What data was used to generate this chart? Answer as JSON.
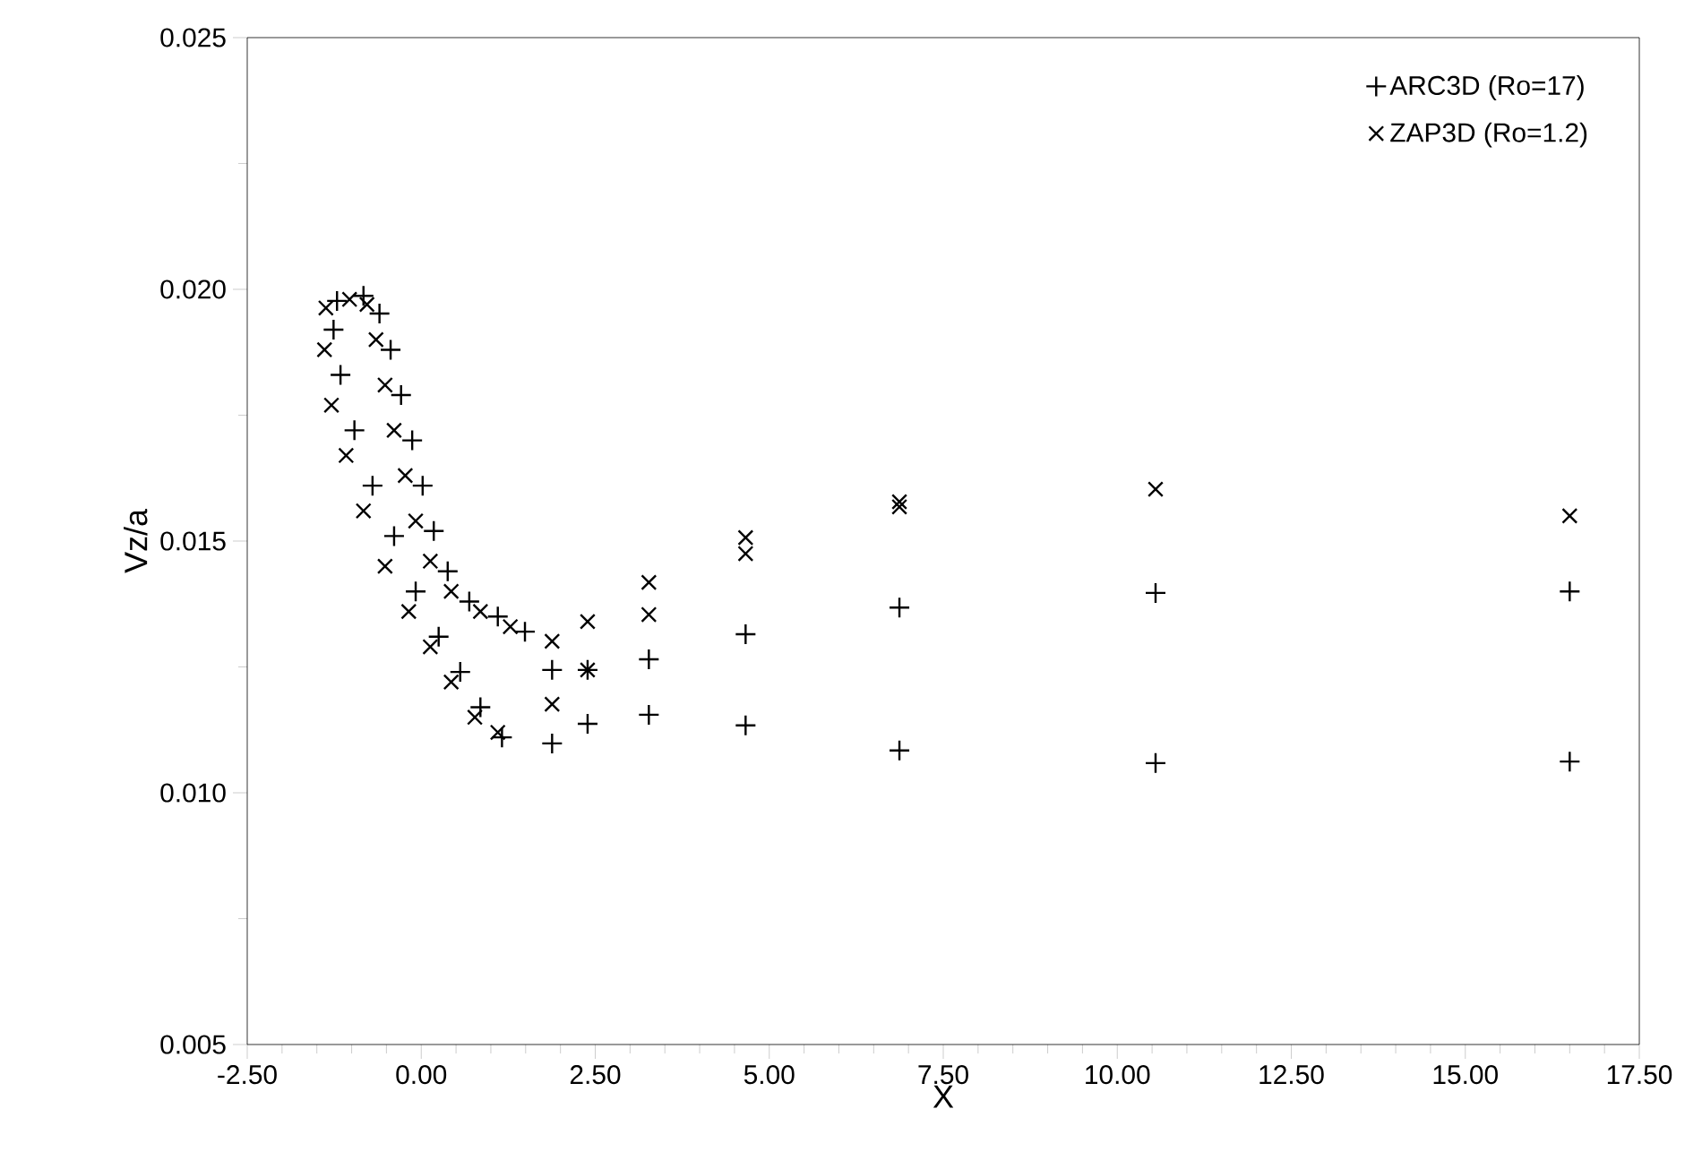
{
  "chart_data": {
    "type": "scatter",
    "xlabel": "X",
    "ylabel": "Vz/a",
    "xlim": [
      -2.5,
      17.5
    ],
    "ylim": [
      0.005,
      0.025
    ],
    "xticks": [
      {
        "value": -2.5,
        "label": "-2.50"
      },
      {
        "value": 0,
        "label": "0.00"
      },
      {
        "value": 2.5,
        "label": "2.50"
      },
      {
        "value": 5,
        "label": "5.00"
      },
      {
        "value": 7.5,
        "label": "7.50"
      },
      {
        "value": 10,
        "label": "10.00"
      },
      {
        "value": 12.5,
        "label": "12.50"
      },
      {
        "value": 15,
        "label": "15.00"
      },
      {
        "value": 17.5,
        "label": "17.50"
      }
    ],
    "yticks": [
      {
        "value": 0.005,
        "label": "0.005"
      },
      {
        "value": 0.01,
        "label": "0.010"
      },
      {
        "value": 0.015,
        "label": "0.015"
      },
      {
        "value": 0.02,
        "label": "0.020"
      },
      {
        "value": 0.025,
        "label": "0.025"
      }
    ],
    "grid": false,
    "legend": "top right",
    "series": [
      {
        "name": "ARC3D (Ro=17)",
        "color": "#000000",
        "marker": "plus",
        "x": [
          -0.83,
          -0.6,
          -0.44,
          -0.29,
          -0.13,
          0.02,
          0.18,
          0.38,
          0.69,
          1.1,
          1.49,
          -1.21,
          -1.26,
          -1.16,
          -0.96,
          -0.7,
          -0.39,
          -0.08,
          0.25,
          0.56,
          0.85,
          1.16,
          1.88,
          1.88,
          2.39,
          2.39,
          3.27,
          3.27,
          4.66,
          4.66,
          6.87,
          6.87,
          10.55,
          10.55,
          16.5,
          16.5
        ],
        "values": [
          0.01987,
          0.01952,
          0.0188,
          0.0179,
          0.017,
          0.0161,
          0.0152,
          0.0144,
          0.0138,
          0.0135,
          0.0132,
          0.01977,
          0.0192,
          0.0183,
          0.0172,
          0.0161,
          0.0151,
          0.014,
          0.0131,
          0.0124,
          0.0117,
          0.0111,
          0.01244,
          0.01098,
          0.01244,
          0.01137,
          0.01265,
          0.01155,
          0.01315,
          0.01134,
          0.01368,
          0.01084,
          0.01397,
          0.01059,
          0.014,
          0.01062
        ]
      },
      {
        "name": "ZAP3D (Ro=1.2)",
        "color": "#000000",
        "marker": "cross",
        "x": [
          -1.03,
          -0.78,
          -0.65,
          -0.52,
          -0.39,
          -0.23,
          -0.08,
          0.13,
          0.43,
          0.85,
          1.28,
          -1.37,
          -1.39,
          -1.29,
          -1.08,
          -0.83,
          -0.52,
          -0.18,
          0.13,
          0.43,
          0.77,
          1.1,
          1.88,
          1.88,
          2.39,
          2.39,
          3.27,
          3.27,
          4.66,
          4.66,
          6.87,
          6.87,
          10.55,
          16.5
        ],
        "values": [
          0.0198,
          0.0197,
          0.019,
          0.0181,
          0.0172,
          0.0163,
          0.0154,
          0.0146,
          0.014,
          0.0136,
          0.0133,
          0.01963,
          0.0188,
          0.0177,
          0.0167,
          0.0156,
          0.0145,
          0.0136,
          0.0129,
          0.0122,
          0.0115,
          0.0112,
          0.01301,
          0.01176,
          0.0134,
          0.01244,
          0.01418,
          0.01354,
          0.01507,
          0.01475,
          0.01568,
          0.01578,
          0.01603,
          0.0155
        ]
      }
    ]
  }
}
